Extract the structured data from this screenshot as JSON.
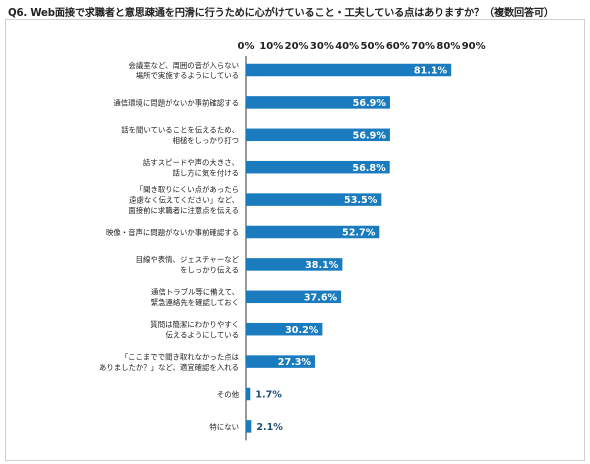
{
  "title": "Q6. Web面接で求職者と意思疎通を円滑に行うために心がけていること・工夫している点はありますか？（複数回答可）",
  "colors": {
    "bar": "#1a7bbf",
    "label_on_bar": "#ffffff",
    "label_outside": "#1f4e79",
    "axis": "#333333",
    "grid": "#d9d9d9"
  },
  "chart_data": {
    "type": "bar",
    "orientation": "horizontal",
    "title": "Q6. Web面接で求職者と意思疎通を円滑に行うために心がけていること・工夫している点はありますか？（複数回答可）",
    "xlim": [
      0,
      90
    ],
    "ticks": [
      0,
      10,
      20,
      30,
      40,
      50,
      60,
      70,
      80,
      90
    ],
    "tick_labels": [
      "0%",
      "10%",
      "20%",
      "30%",
      "40%",
      "50%",
      "60%",
      "70%",
      "80%",
      "90%"
    ],
    "categories": [
      "会議室など、周囲の音が入らない\n場所で実施するようにしている",
      "通信環境に問題がないか事前確認する",
      "話を聞いていることを伝えるため、\n相槌をしっかり打つ",
      "話すスピードや声の大きさ、\n話し方に気を付ける",
      "「聞き取りにくい点があったら\n遠慮なく伝えてください」など、\n面接前に求職者に注意点を伝える",
      "映像・音声に問題がないか事前確認する",
      "目線や表情、ジェスチャーなど\nをしっかり伝える",
      "通信トラブル等に備えて、\n緊急連絡先を確認しておく",
      "質問は簡潔にわかりやすく\n伝えるようにしている",
      "「ここまでで聞き取れなかった点は\nありましたか？」など、適宜確認を入れる",
      "その他",
      "特にない"
    ],
    "values": [
      81.1,
      56.9,
      56.9,
      56.8,
      53.5,
      52.7,
      38.1,
      37.6,
      30.2,
      27.3,
      1.7,
      2.1
    ],
    "value_labels": [
      "81.1%",
      "56.9%",
      "56.9%",
      "56.8%",
      "53.5%",
      "52.7%",
      "38.1%",
      "37.6%",
      "30.2%",
      "27.3%",
      "1.7%",
      "2.1%"
    ],
    "legend": "none",
    "grid": false
  }
}
